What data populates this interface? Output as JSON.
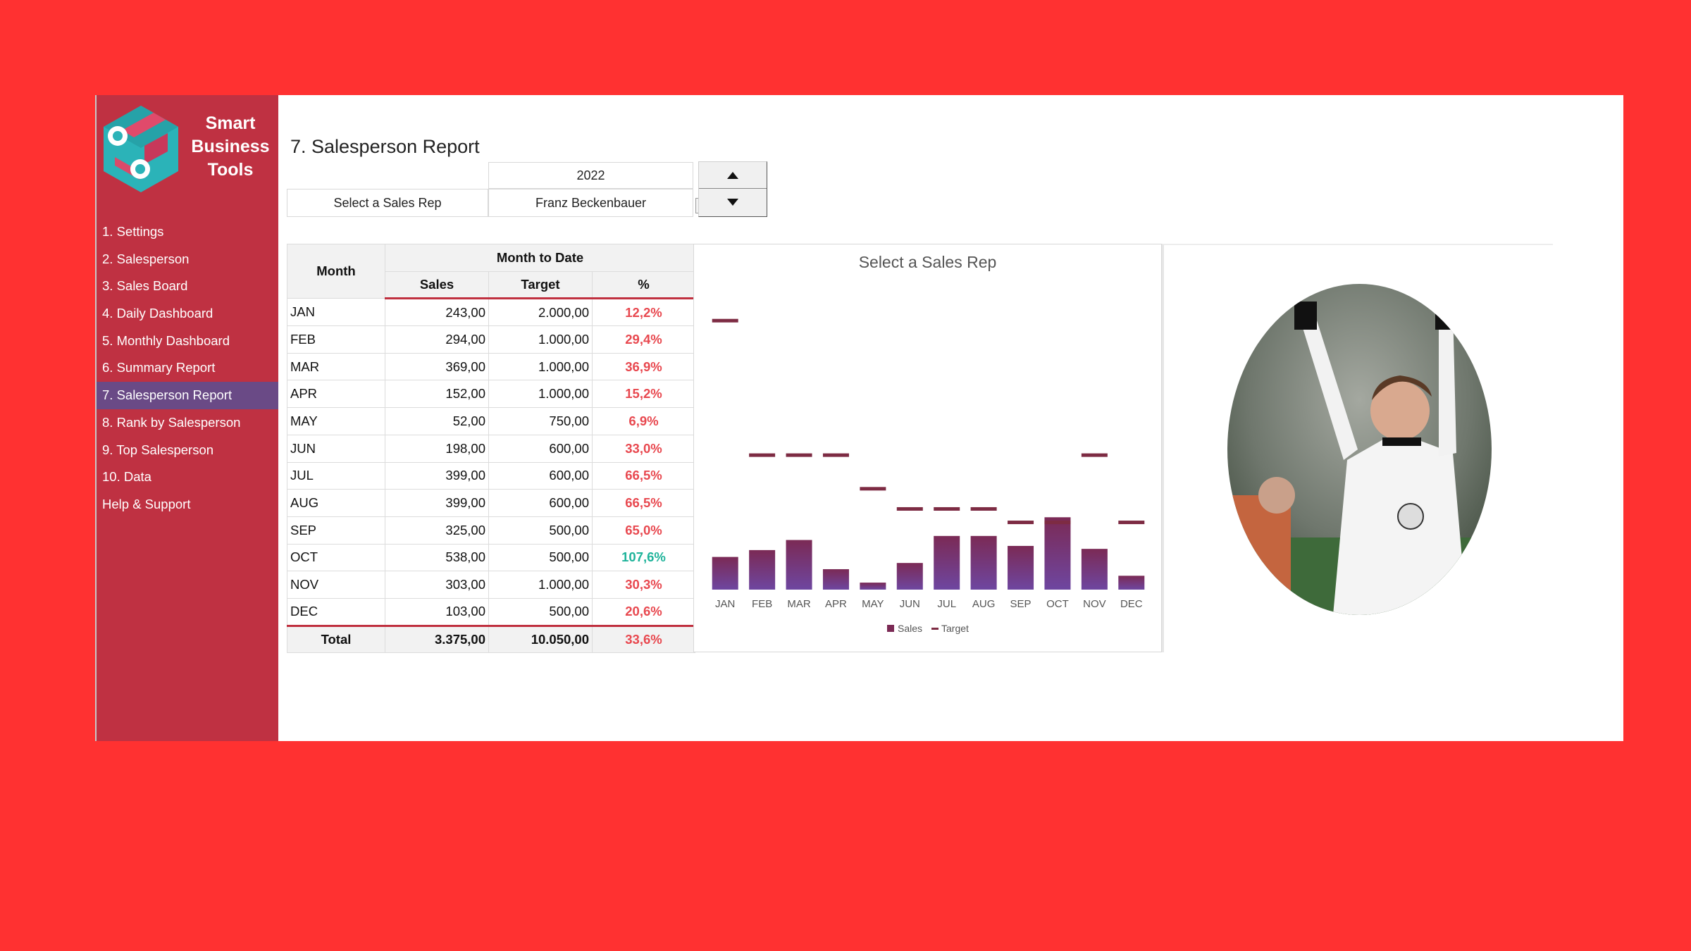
{
  "brand": {
    "line1": "Smart",
    "line2": "Business",
    "line3": "Tools"
  },
  "nav": {
    "items": [
      {
        "label": "1. Settings"
      },
      {
        "label": "2. Salesperson"
      },
      {
        "label": "3. Sales Board"
      },
      {
        "label": "4. Daily Dashboard"
      },
      {
        "label": "5. Monthly Dashboard"
      },
      {
        "label": "6. Summary Report"
      },
      {
        "label": "7. Salesperson Report",
        "active": true
      },
      {
        "label": "8. Rank by Salesperson"
      },
      {
        "label": "9. Top Salesperson"
      },
      {
        "label": "10. Data"
      },
      {
        "label": "Help & Support"
      }
    ]
  },
  "page": {
    "title": "7. Salesperson Report"
  },
  "selector": {
    "year": "2022",
    "rep_label": "Select a Sales Rep",
    "rep_name": "Franz Beckenbauer"
  },
  "table": {
    "header_month": "Month",
    "header_group": "Month to Date",
    "header_sales": "Sales",
    "header_target": "Target",
    "header_pct": "%",
    "rows": [
      {
        "month": "JAN",
        "sales": "243,00",
        "target": "2.000,00",
        "pct": "12,2%"
      },
      {
        "month": "FEB",
        "sales": "294,00",
        "target": "1.000,00",
        "pct": "29,4%"
      },
      {
        "month": "MAR",
        "sales": "369,00",
        "target": "1.000,00",
        "pct": "36,9%"
      },
      {
        "month": "APR",
        "sales": "152,00",
        "target": "1.000,00",
        "pct": "15,2%"
      },
      {
        "month": "MAY",
        "sales": "52,00",
        "target": "750,00",
        "pct": "6,9%"
      },
      {
        "month": "JUN",
        "sales": "198,00",
        "target": "600,00",
        "pct": "33,0%"
      },
      {
        "month": "JUL",
        "sales": "399,00",
        "target": "600,00",
        "pct": "66,5%"
      },
      {
        "month": "AUG",
        "sales": "399,00",
        "target": "600,00",
        "pct": "66,5%"
      },
      {
        "month": "SEP",
        "sales": "325,00",
        "target": "500,00",
        "pct": "65,0%"
      },
      {
        "month": "OCT",
        "sales": "538,00",
        "target": "500,00",
        "pct": "107,6%"
      },
      {
        "month": "NOV",
        "sales": "303,00",
        "target": "1.000,00",
        "pct": "30,3%"
      },
      {
        "month": "DEC",
        "sales": "103,00",
        "target": "500,00",
        "pct": "20,6%"
      }
    ],
    "total": {
      "label": "Total",
      "sales": "3.375,00",
      "target": "10.050,00",
      "pct": "33,6%"
    }
  },
  "colors": {
    "pct_below": "#e8484f",
    "pct_above": "#1eb39a",
    "sales_bar_top": "#7b2a55",
    "sales_bar_bottom": "#6e46a0",
    "target_marker": "#7d2b43"
  },
  "chart_data": {
    "type": "bar",
    "title": "Select a Sales Rep",
    "categories": [
      "JAN",
      "FEB",
      "MAR",
      "APR",
      "MAY",
      "JUN",
      "JUL",
      "AUG",
      "SEP",
      "OCT",
      "NOV",
      "DEC"
    ],
    "series": [
      {
        "name": "Sales",
        "kind": "bar",
        "values": [
          243,
          294,
          369,
          152,
          52,
          198,
          399,
          399,
          325,
          538,
          303,
          103
        ]
      },
      {
        "name": "Target",
        "kind": "marker",
        "values": [
          2000,
          1000,
          1000,
          1000,
          750,
          600,
          600,
          600,
          500,
          500,
          1000,
          500
        ]
      }
    ],
    "ylim": [
      0,
      2200
    ],
    "grid": false,
    "legend": "bottom"
  },
  "photo": {
    "alt_icon": "person-photo"
  }
}
